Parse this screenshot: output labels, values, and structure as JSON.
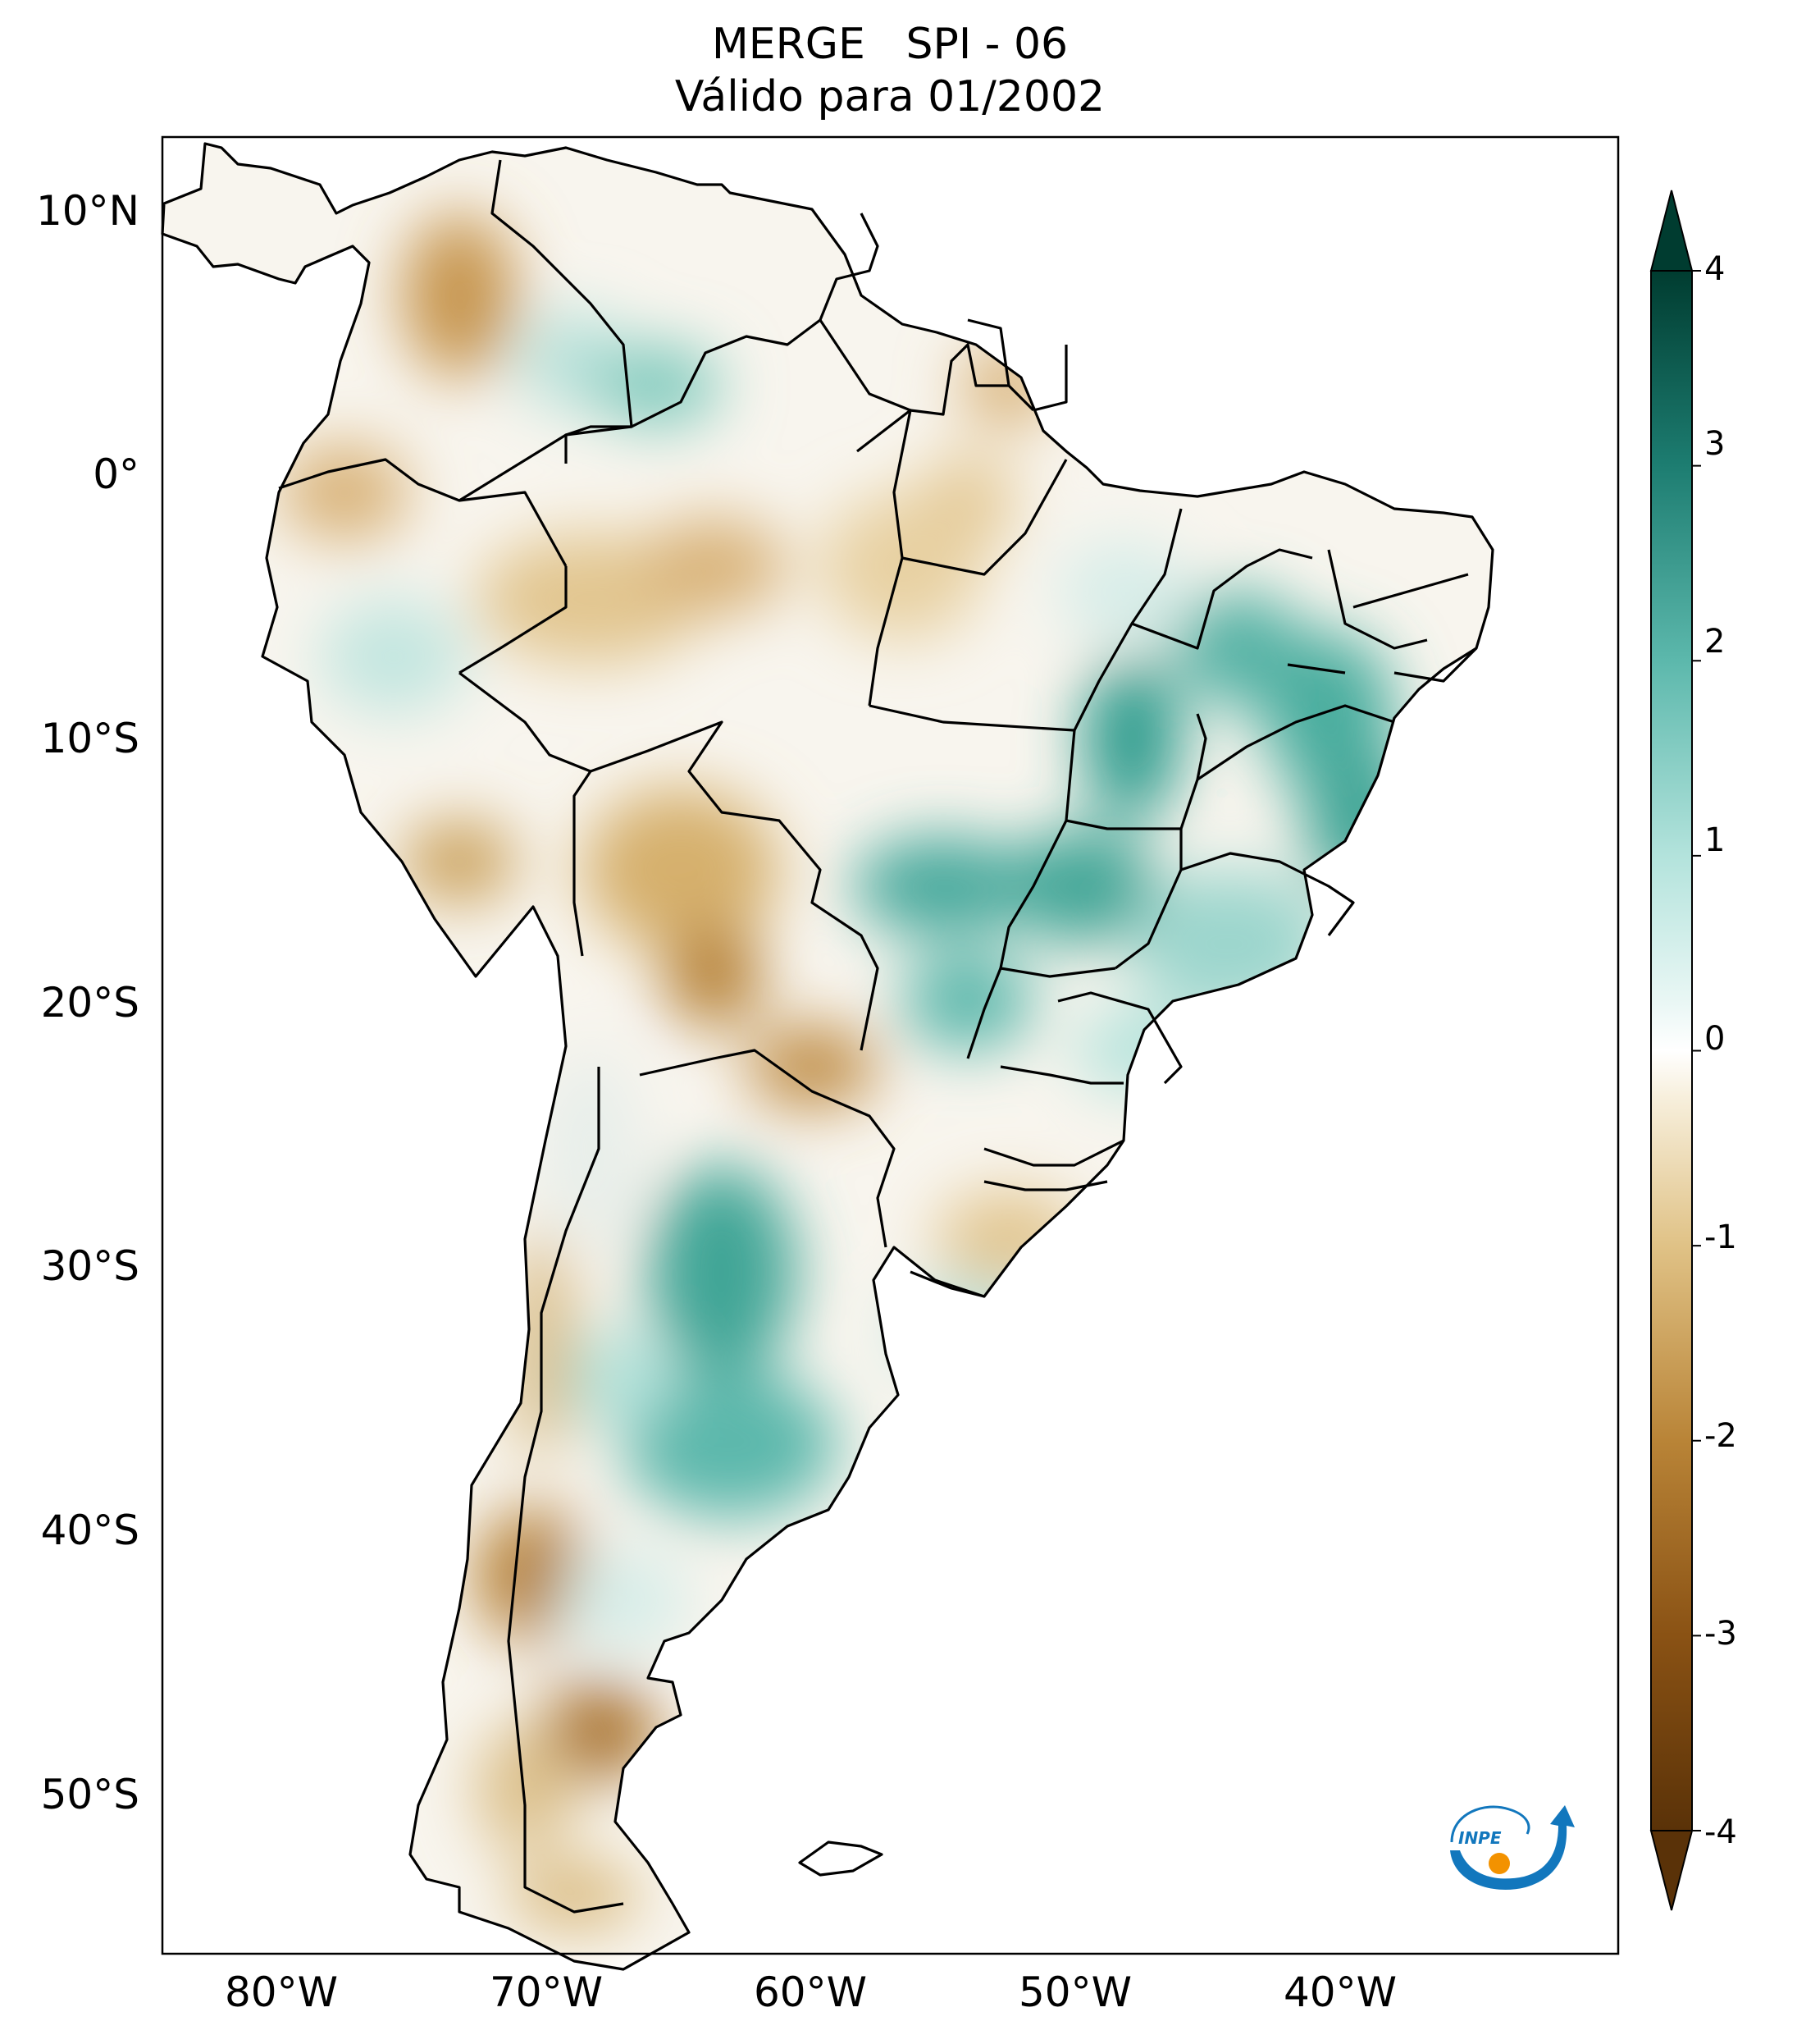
{
  "title": {
    "line1": "MERGE   SPI - 06",
    "line2": "Válido para 01/2002"
  },
  "map": {
    "lat_labels": [
      "10°N",
      "0°",
      "10°S",
      "20°S",
      "30°S",
      "40°S",
      "50°S"
    ],
    "lon_labels": [
      "80°W",
      "70°W",
      "60°W",
      "50°W",
      "40°W"
    ],
    "lat_values": [
      10,
      0,
      -10,
      -20,
      -30,
      -40,
      -50
    ],
    "lon_values": [
      -80,
      -70,
      -60,
      -50,
      -40
    ],
    "lon_range": [
      -85,
      -30
    ],
    "lat_range": [
      -56,
      13
    ]
  },
  "colorbar": {
    "tick_labels": [
      "4",
      "3",
      "2",
      "1",
      "0",
      "-1",
      "-2",
      "-3",
      "-4"
    ],
    "tick_values": [
      4,
      3,
      2,
      1,
      0,
      -1,
      -2,
      -3,
      -4
    ],
    "min": -4,
    "max": 4,
    "colors": {
      "dry_extreme": "#5a3208",
      "dry_strong": "#a0651c",
      "dry_mid": "#c89a4e",
      "dry_light": "#ead3a2",
      "neutral": "#ffffff",
      "wet_light": "#c5ebe6",
      "wet_mid": "#5cb8ac",
      "wet_strong": "#1d7d71",
      "wet_extreme": "#003c30"
    }
  },
  "logo": {
    "text": "INPE",
    "colors": {
      "arc": "#1277bd",
      "sun": "#f39200"
    }
  }
}
